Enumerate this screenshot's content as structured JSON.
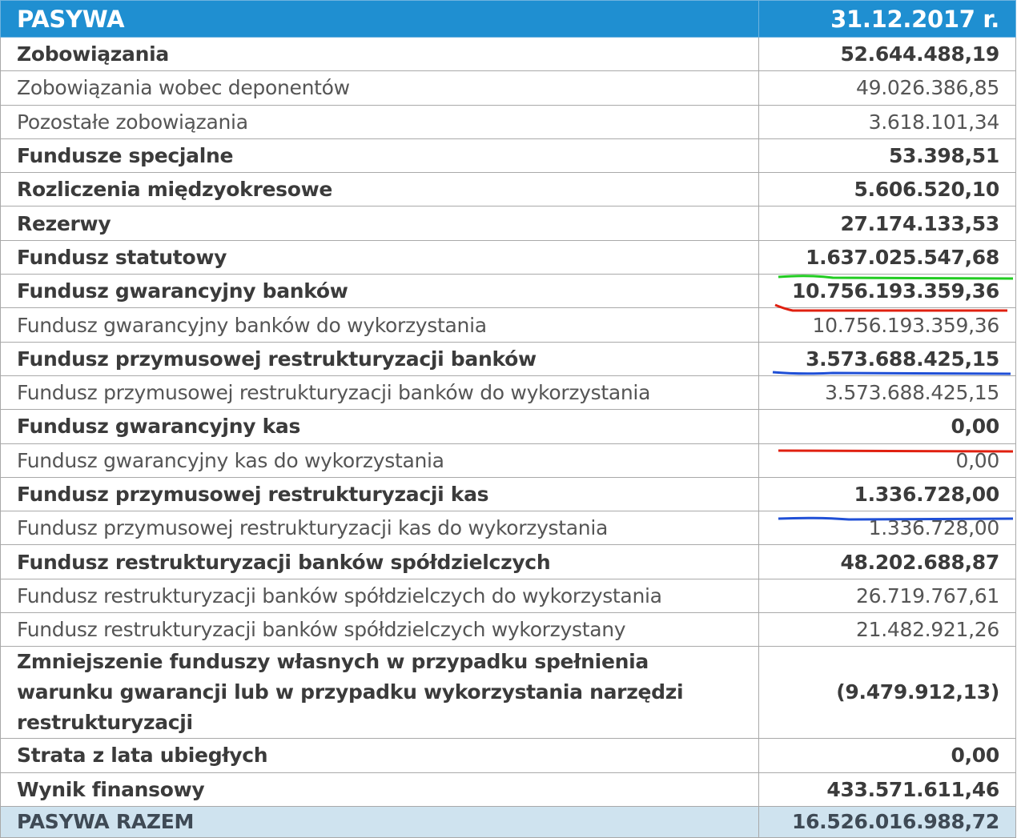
{
  "header": {
    "label": "PASYWA",
    "date": "31.12.2017 r."
  },
  "rows": [
    {
      "label": "Zobowiązania",
      "value": "52.644.488,19",
      "bold": true
    },
    {
      "label": "Zobowiązania wobec deponentów",
      "value": "49.026.386,85",
      "bold": false
    },
    {
      "label": "Pozostałe zobowiązania",
      "value": "3.618.101,34",
      "bold": false
    },
    {
      "label": "Fundusze specjalne",
      "value": "53.398,51",
      "bold": true
    },
    {
      "label": "Rozliczenia międzyokresowe",
      "value": "5.606.520,10",
      "bold": true
    },
    {
      "label": "Rezerwy",
      "value": "27.174.133,53",
      "bold": true
    },
    {
      "label": "Fundusz statutowy",
      "value": "1.637.025.547,68",
      "bold": true
    },
    {
      "label": "Fundusz gwarancyjny banków",
      "value": "10.756.193.359,36",
      "bold": true
    },
    {
      "label": "Fundusz gwarancyjny banków do wykorzystania",
      "value": "10.756.193.359,36",
      "bold": false
    },
    {
      "label": "Fundusz przymusowej restrukturyzacji banków",
      "value": "3.573.688.425,15",
      "bold": true
    },
    {
      "label": "Fundusz przymusowej restrukturyzacji banków do wykorzystania",
      "value": "3.573.688.425,15",
      "bold": false
    },
    {
      "label": "Fundusz gwarancyjny kas",
      "value": "0,00",
      "bold": true
    },
    {
      "label": "Fundusz gwarancyjny kas do wykorzystania",
      "value": "0,00",
      "bold": false
    },
    {
      "label": "Fundusz przymusowej restrukturyzacji kas",
      "value": "1.336.728,00",
      "bold": true
    },
    {
      "label": "Fundusz przymusowej restrukturyzacji kas do wykorzystania",
      "value": "1.336.728,00",
      "bold": false
    },
    {
      "label": "Fundusz restrukturyzacji banków spółdzielczych",
      "value": "48.202.688,87",
      "bold": true
    },
    {
      "label": "Fundusz restrukturyzacji banków spółdzielczych do wykorzystania",
      "value": "26.719.767,61",
      "bold": false
    },
    {
      "label": "Fundusz restrukturyzacji banków spółdzielczych wykorzystany",
      "value": "21.482.921,26",
      "bold": false
    },
    {
      "label": "Zmniejszenie funduszy własnych w przypadku spełnienia warunku gwarancji lub w przypadku wykorzystania narzędzi restrukturyzacji",
      "value": "(9.479.912,13)",
      "bold": true
    },
    {
      "label": "Strata z lata ubiegłych",
      "value": "0,00",
      "bold": true
    },
    {
      "label": "Wynik finansowy",
      "value": "433.571.611,46",
      "bold": true
    }
  ],
  "total": {
    "label": "PASYWA RAZEM",
    "value": "16.526.016.988,72"
  },
  "colors": {
    "header_bg": "#1f8fd1",
    "total_bg": "#cfe3ef",
    "mark_green": "#22cc22",
    "mark_red": "#e02010",
    "mark_blue": "#1f4fd6"
  }
}
